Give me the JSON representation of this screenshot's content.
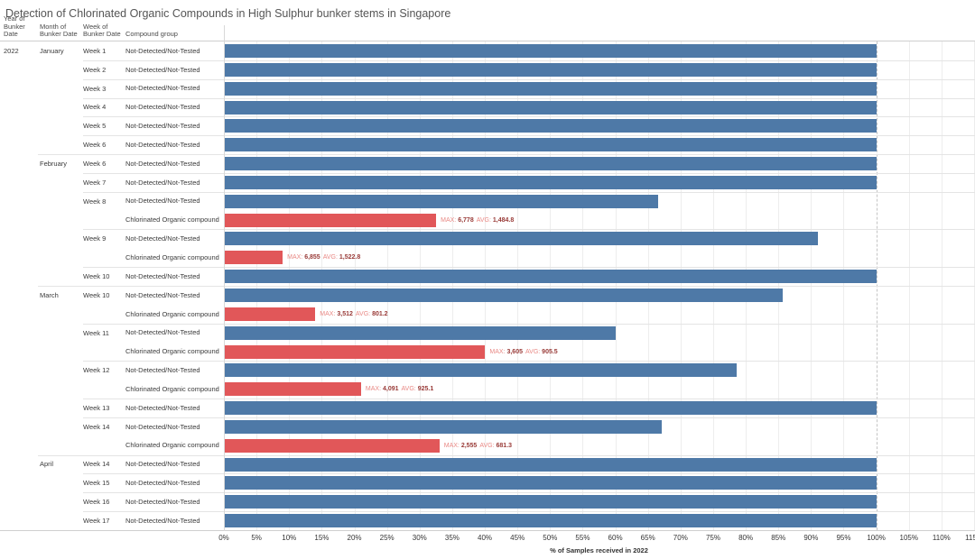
{
  "title": "Detection of Chlorinated Organic Compounds in High Sulphur bunker stems in Singapore",
  "row_headers": {
    "year": "Year of\nBunker Date",
    "month": "Month of\nBunker Date",
    "week": "Week of\nBunker Date",
    "compound": "Compound group"
  },
  "labels": {
    "max_prefix": "MAX:",
    "avg_prefix": "AVG:"
  },
  "colors": {
    "not_detected_bar": "#4e79a7",
    "chlorinated_bar": "#e15759",
    "annotation_prefix": "#e98985",
    "annotation_value": "#993a37"
  },
  "axis": {
    "ticks": [
      "0%",
      "5%",
      "10%",
      "15%",
      "20%",
      "25%",
      "30%",
      "35%",
      "40%",
      "45%",
      "50%",
      "55%",
      "60%",
      "65%",
      "70%",
      "75%",
      "80%",
      "85%",
      "90%",
      "95%",
      "100%",
      "105%",
      "110%",
      "115%"
    ],
    "dashed_tick": "100%",
    "title": "% of Samples received in 2022"
  },
  "chart_data": {
    "type": "bar",
    "orientation": "horizontal",
    "xlabel": "% of Samples received in 2022",
    "xlim": [
      0,
      115
    ],
    "x_tick_step_pct": 5,
    "groups": {
      "nd": "Not-Detected/Not-Tested",
      "co": "Chlorinated Organic compound"
    },
    "rows": [
      {
        "year": "2022",
        "month": "January",
        "week": "Week 1",
        "compound": "Not-Detected/Not-Tested",
        "group": "nd",
        "value": 100,
        "month_start": true,
        "week_start": true
      },
      {
        "week": "Week 2",
        "compound": "Not-Detected/Not-Tested",
        "group": "nd",
        "value": 100,
        "week_start": true
      },
      {
        "week": "Week 3",
        "compound": "Not-Detected/Not-Tested",
        "group": "nd",
        "value": 100,
        "week_start": true
      },
      {
        "week": "Week 4",
        "compound": "Not-Detected/Not-Tested",
        "group": "nd",
        "value": 100,
        "week_start": true
      },
      {
        "week": "Week 5",
        "compound": "Not-Detected/Not-Tested",
        "group": "nd",
        "value": 100,
        "week_start": true
      },
      {
        "week": "Week 6",
        "compound": "Not-Detected/Not-Tested",
        "group": "nd",
        "value": 100,
        "week_start": true
      },
      {
        "month": "February",
        "week": "Week 6",
        "compound": "Not-Detected/Not-Tested",
        "group": "nd",
        "value": 100,
        "month_start": true,
        "week_start": true
      },
      {
        "week": "Week 7",
        "compound": "Not-Detected/Not-Tested",
        "group": "nd",
        "value": 100,
        "week_start": true
      },
      {
        "week": "Week 8",
        "compound": "Not-Detected/Not-Tested",
        "group": "nd",
        "value": 66.5,
        "week_start": true
      },
      {
        "compound": "Chlorinated Organic compound",
        "group": "co",
        "value": 32.5,
        "max": "6,778",
        "avg": "1,484.8"
      },
      {
        "week": "Week 9",
        "compound": "Not-Detected/Not-Tested",
        "group": "nd",
        "value": 91,
        "week_start": true
      },
      {
        "compound": "Chlorinated Organic compound",
        "group": "co",
        "value": 9,
        "max": "6,855",
        "avg": "1,522.8"
      },
      {
        "week": "Week 10",
        "compound": "Not-Detected/Not-Tested",
        "group": "nd",
        "value": 100,
        "week_start": true
      },
      {
        "month": "March",
        "week": "Week 10",
        "compound": "Not-Detected/Not-Tested",
        "group": "nd",
        "value": 85.5,
        "month_start": true,
        "week_start": true
      },
      {
        "compound": "Chlorinated Organic compound",
        "group": "co",
        "value": 14,
        "max": "3,512",
        "avg": "801.2"
      },
      {
        "week": "Week 11",
        "compound": "Not-Detected/Not-Tested",
        "group": "nd",
        "value": 60,
        "week_start": true
      },
      {
        "compound": "Chlorinated Organic compound",
        "group": "co",
        "value": 40,
        "max": "3,605",
        "avg": "905.5"
      },
      {
        "week": "Week 12",
        "compound": "Not-Detected/Not-Tested",
        "group": "nd",
        "value": 78.5,
        "week_start": true
      },
      {
        "compound": "Chlorinated Organic compound",
        "group": "co",
        "value": 21,
        "max": "4,091",
        "avg": "925.1"
      },
      {
        "week": "Week 13",
        "compound": "Not-Detected/Not-Tested",
        "group": "nd",
        "value": 100,
        "week_start": true
      },
      {
        "week": "Week 14",
        "compound": "Not-Detected/Not-Tested",
        "group": "nd",
        "value": 67,
        "week_start": true
      },
      {
        "compound": "Chlorinated Organic compound",
        "group": "co",
        "value": 33,
        "max": "2,555",
        "avg": "681.3"
      },
      {
        "month": "April",
        "week": "Week 14",
        "compound": "Not-Detected/Not-Tested",
        "group": "nd",
        "value": 100,
        "month_start": true,
        "week_start": true
      },
      {
        "week": "Week 15",
        "compound": "Not-Detected/Not-Tested",
        "group": "nd",
        "value": 100,
        "week_start": true
      },
      {
        "week": "Week 16",
        "compound": "Not-Detected/Not-Tested",
        "group": "nd",
        "value": 100,
        "week_start": true
      },
      {
        "week": "Week 17",
        "compound": "Not-Detected/Not-Tested",
        "group": "nd",
        "value": 100,
        "week_start": true
      }
    ]
  }
}
